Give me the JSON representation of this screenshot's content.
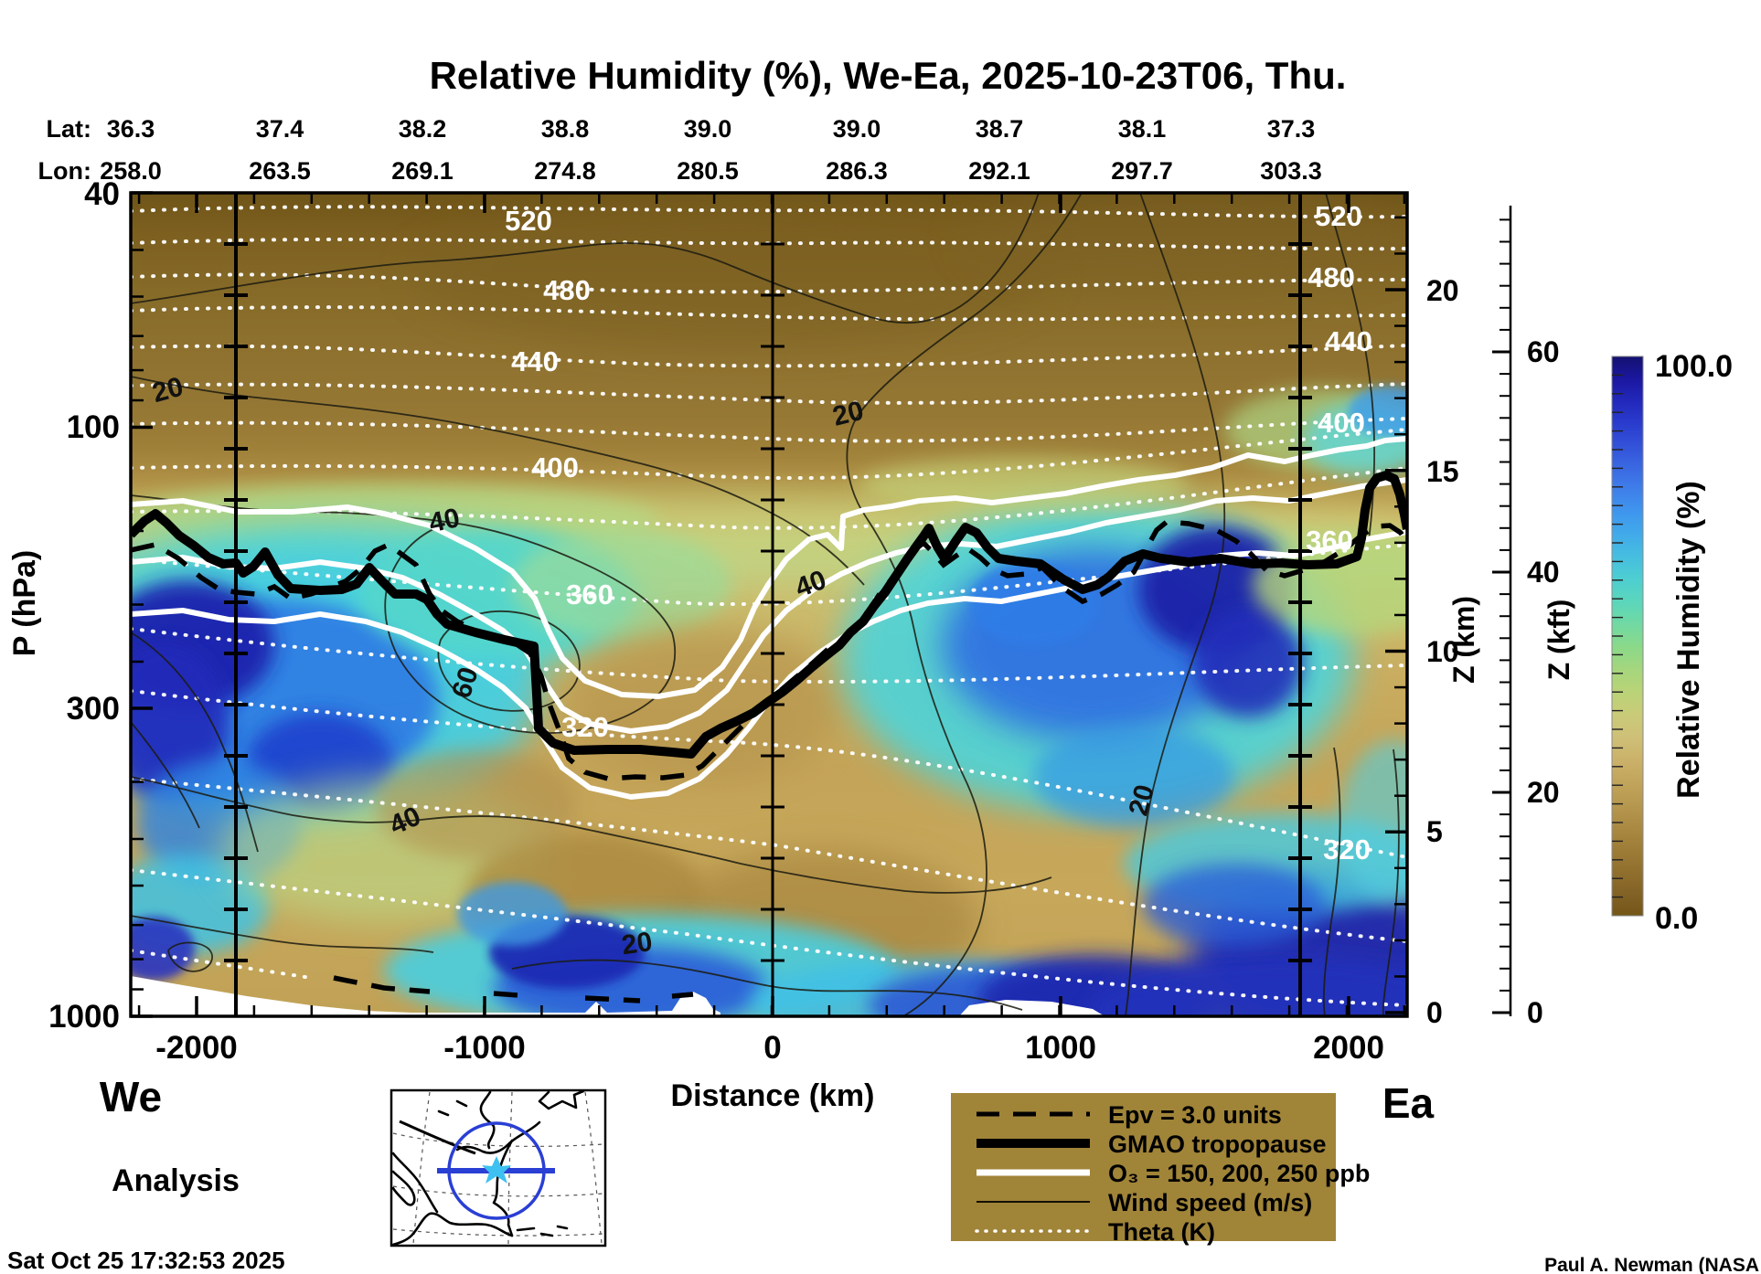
{
  "title": "Relative Humidity (%), We-Ea, 2025-10-23T06, Thu.",
  "header": {
    "lat_label": "Lat:",
    "lon_label": "Lon:",
    "lat": [
      "36.3",
      "37.4",
      "38.2",
      "38.8",
      "39.0",
      "39.0",
      "38.7",
      "38.1",
      "37.3"
    ],
    "lon": [
      "258.0",
      "263.5",
      "269.1",
      "274.8",
      "280.5",
      "286.3",
      "292.1",
      "297.7",
      "303.3"
    ]
  },
  "axes": {
    "p": {
      "label": "P (hPa)",
      "ticks": [
        "40",
        "100",
        "300",
        "1000"
      ]
    },
    "x": {
      "label": "Distance (km)",
      "ticks": [
        "-2000",
        "-1000",
        "0",
        "1000",
        "2000"
      ]
    },
    "z_km": {
      "label": "Z (km)",
      "ticks": [
        "20",
        "15",
        "10",
        "5",
        "0"
      ]
    },
    "z_kft": {
      "label": "Z (kft)",
      "ticks": [
        "60",
        "40",
        "20",
        "0"
      ]
    }
  },
  "colorbar": {
    "label": "Relative Humidity (%)",
    "max": "100.0",
    "min": "0.0",
    "top_color": "#141170",
    "bottom_color": "#745617"
  },
  "labels": {
    "theta_left": [
      "520",
      "480",
      "440",
      "400",
      "360",
      "320"
    ],
    "theta_right": [
      "520",
      "480",
      "440",
      "400",
      "360",
      "320"
    ],
    "wind": [
      "20",
      "40",
      "60",
      "40",
      "20",
      "20",
      "40",
      "20"
    ]
  },
  "legend": {
    "bg": "#a08438",
    "items": [
      {
        "label": "Epv = 3.0 units"
      },
      {
        "label": "GMAO tropopause"
      },
      {
        "label": "O₃ = 150, 200, 250 ppb"
      },
      {
        "label": "Wind speed (m/s)"
      },
      {
        "label": "Theta (K)"
      }
    ]
  },
  "footer": {
    "west_label": "We",
    "east_label": "Ea",
    "analysis_label": "Analysis",
    "timestamp": "Sat Oct 25 17:32:53 2025",
    "credit": "Paul A. Newman (NASA"
  },
  "chart_data": {
    "type": "heatmap",
    "subtype": "vertical-cross-section-contour",
    "title": "Relative Humidity (%), We-Ea, 2025-10-23T06, Thu.",
    "xlabel": "Distance (km)",
    "ylabel_left": "P (hPa)",
    "ylabel_right": [
      "Z (km)",
      "Z (kft)"
    ],
    "x_range_km": [
      -2230,
      2210
    ],
    "x_ticks_km": [
      -2000,
      -1000,
      0,
      1000,
      2000
    ],
    "p_range_hpa": [
      40,
      1000
    ],
    "p_ticks_hpa": [
      40,
      100,
      300,
      1000
    ],
    "z_km_ticks": [
      0,
      5,
      10,
      15,
      20
    ],
    "z_kft_ticks": [
      0,
      20,
      40,
      60
    ],
    "fill_field": "Relative Humidity (%)",
    "fill_range": [
      0.0,
      100.0
    ],
    "palette": [
      "#745617",
      "#91702e",
      "#ab8b43",
      "#c2a55c",
      "#cfc078",
      "#c9cb79",
      "#a5d67d",
      "#72d9a2",
      "#4ecfd0",
      "#46bfdf",
      "#3f97ee",
      "#3a69e2",
      "#2a3ccd",
      "#1b17a0",
      "#141170"
    ],
    "contours": {
      "theta_K": {
        "labeled_levels": [
          320,
          360,
          400,
          440,
          480,
          520
        ],
        "style": "white dotted"
      },
      "wind_speed_ms": {
        "labeled_levels": [
          20,
          40,
          60
        ],
        "style": "thin black solid"
      },
      "ozone_ppb": {
        "levels": [
          150,
          200,
          250
        ],
        "style": "thick white solid"
      },
      "epv_units": {
        "level": 3.0,
        "style": "thick black dashed"
      },
      "tropopause": {
        "name": "GMAO tropopause",
        "style": "thick black solid"
      }
    },
    "reference_vertical_lines_km": [
      -1860,
      0,
      1840
    ],
    "tropopause_height_series": {
      "x_km": [
        -2230,
        -1850,
        -1500,
        -1200,
        -1000,
        -850,
        -700,
        -550,
        -300,
        -100,
        0,
        150,
        300,
        450,
        600,
        800,
        1000,
        1300,
        1600,
        1850,
        2050,
        2150,
        2210
      ],
      "z_km": [
        13.3,
        12.5,
        11.8,
        11.7,
        11.0,
        10.4,
        7.9,
        7.4,
        7.3,
        7.7,
        8.7,
        9.4,
        11.2,
        13.4,
        13.5,
        12.6,
        12.5,
        12.6,
        12.5,
        12.5,
        14.9,
        14.8,
        13.4
      ]
    },
    "series_note": "Filled RH field: dry (0-20%) brown stratosphere above tropopause; moist plumes (60-100%) at mid-levels near -2000 km and +500..+1500 km, and in boundary layer near surface."
  }
}
